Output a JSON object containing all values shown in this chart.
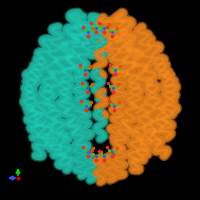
{
  "background_color": "#000000",
  "figure_size": [
    2.0,
    2.0
  ],
  "dpi": 100,
  "teal_color": "#1aaa96",
  "teal_dark": "#0d7a6e",
  "teal_light": "#2dd4bc",
  "orange_color": "#d4751a",
  "orange_dark": "#a05510",
  "orange_light": "#f0952a",
  "axis_arrow_green": "#00dd00",
  "axis_arrow_blue": "#3355ff",
  "axis_arrow_red": "#cc0000"
}
